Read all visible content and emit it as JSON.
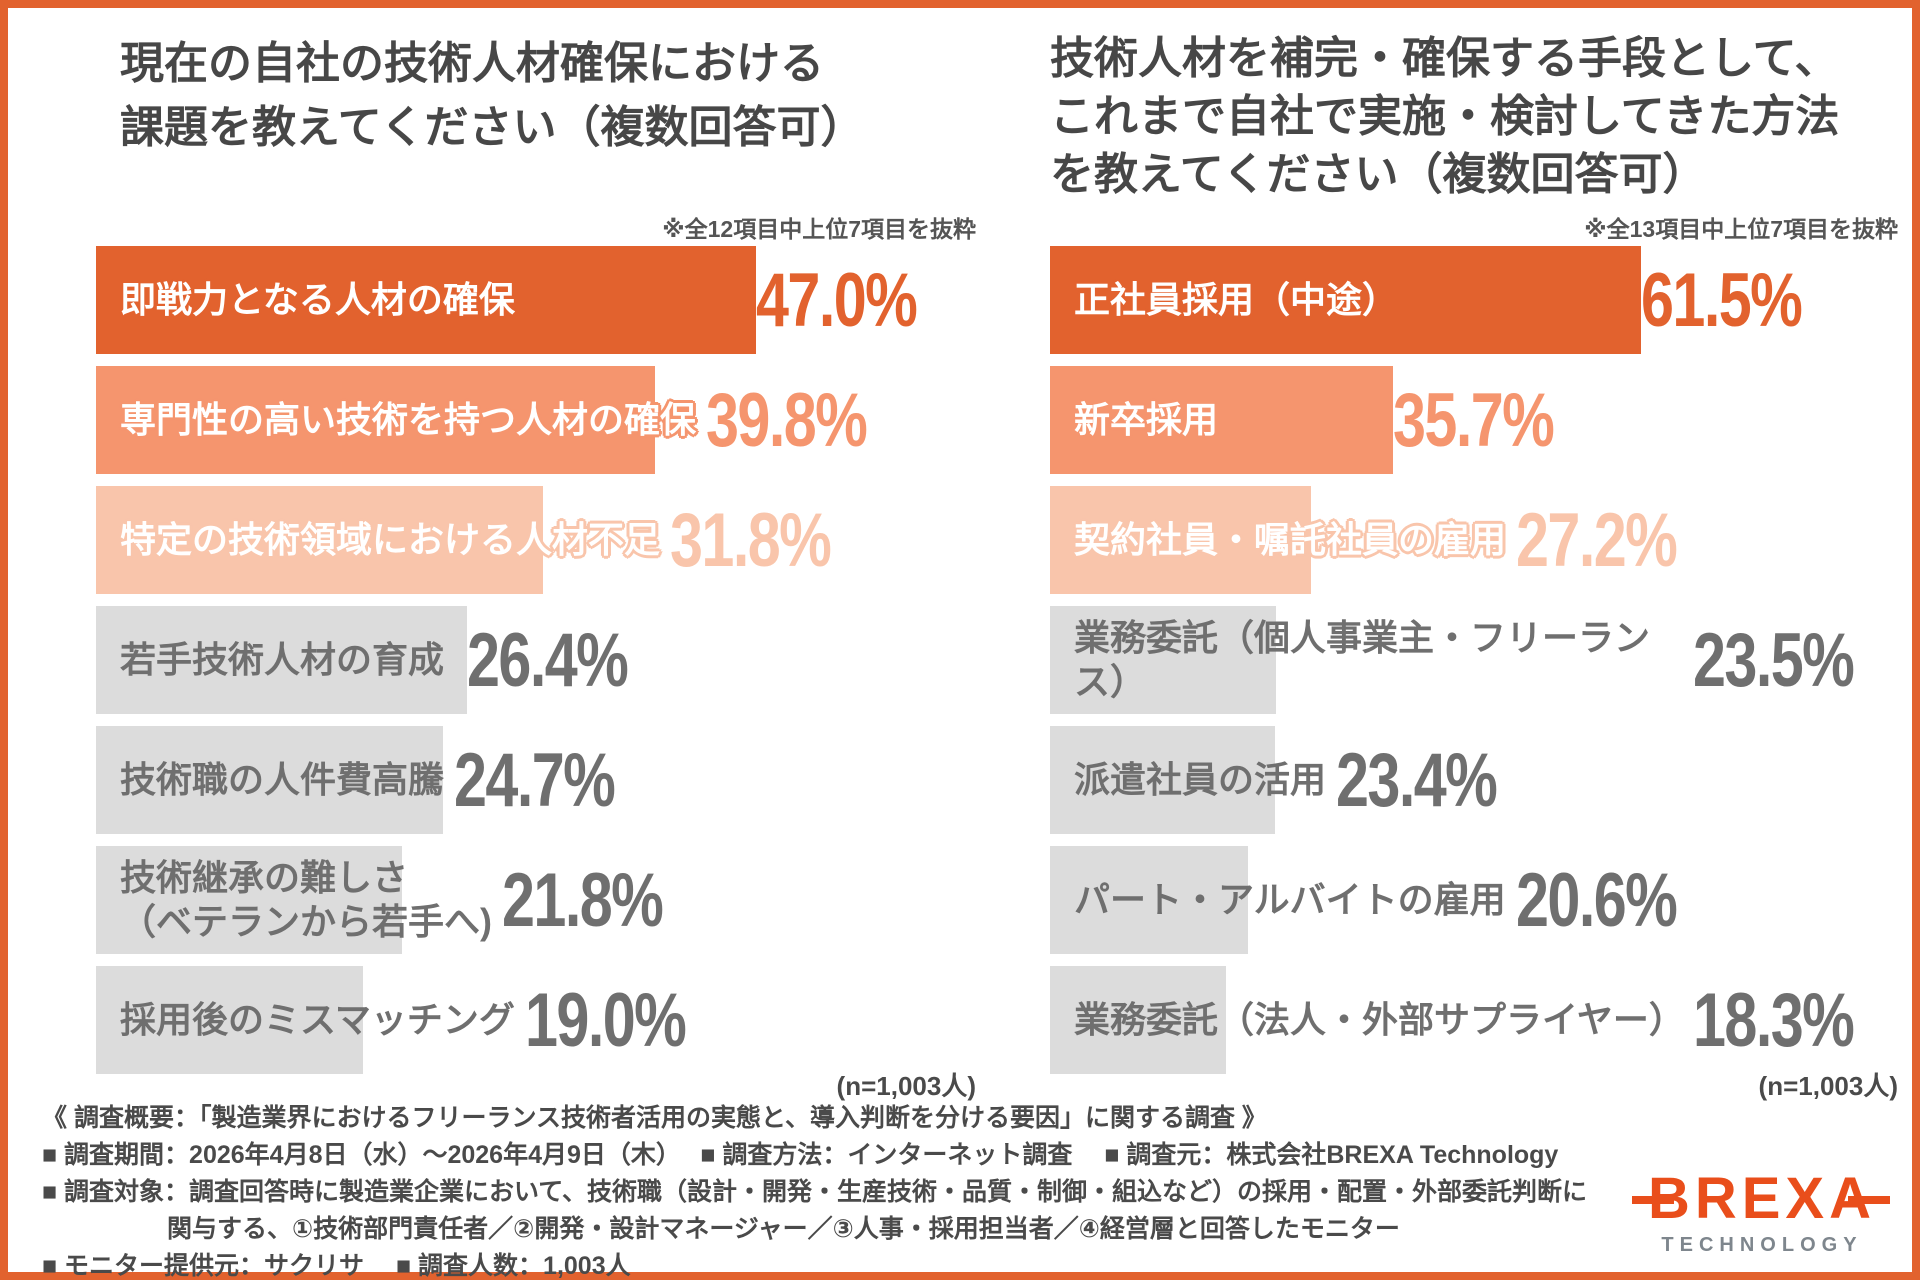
{
  "colors": {
    "accent": "#E2622E",
    "bar_strong": "#E2622E",
    "bar_medium": "#F5956E",
    "bar_light": "#F9C5AB",
    "bar_gray": "#DCDCDC",
    "text_dark": "#474747",
    "text_gray": "#6F6F6F",
    "logo_orange": "#E94E1B",
    "logo_gray": "#7E868D"
  },
  "chart_data": [
    {
      "type": "bar",
      "title": "現在の自社の技術人材確保における課題を教えてください（複数回答可）",
      "title_lines": [
        "現在の自社の技術人材確保における",
        "課題を教えてください（複数回答可）"
      ],
      "note": "※全12項目中上位7項目を抜粋",
      "sample_label": "(n=1,003人)",
      "value_unit": "%",
      "xlim": [
        0,
        50
      ],
      "legend": "none",
      "categories": [
        "即戦力となる人材の確保",
        "専門性の高い技術を持つ人材の確保",
        "特定の技術領域における人材不足",
        "若手技術人材の育成",
        "技術職の人件費高騰",
        "技術継承の難しさ\n（ベテランから若手へ)",
        "採用後のミスマッチング"
      ],
      "values": [
        47.0,
        39.8,
        31.8,
        26.4,
        24.7,
        21.8,
        19.0
      ],
      "styles": [
        "strong",
        "medium",
        "light",
        "gray",
        "gray",
        "gray",
        "gray"
      ]
    },
    {
      "type": "bar",
      "title": "技術人材を補完・確保する手段として、これまで自社で実施・検討してきた方法を教えてください（複数回答可）",
      "title_lines": [
        "技術人材を補完・確保する手段として、",
        "これまで自社で実施・検討してきた方法",
        "を教えてください（複数回答可）"
      ],
      "note": "※全13項目中上位7項目を抜粋",
      "sample_label": "(n=1,003人)",
      "value_unit": "%",
      "xlim": [
        0,
        65
      ],
      "legend": "none",
      "categories": [
        "正社員採用（中途）",
        "新卒採用",
        "契約社員・嘱託社員の雇用",
        "業務委託（個人事業主・フリーランス）",
        "派遣社員の活用",
        "パート・アルバイトの雇用",
        "業務委託（法人・外部サプライヤー）"
      ],
      "values": [
        61.5,
        35.7,
        27.2,
        23.5,
        23.4,
        20.6,
        18.3
      ],
      "styles": [
        "strong",
        "medium",
        "light",
        "gray",
        "gray",
        "gray",
        "gray"
      ]
    }
  ],
  "footer": {
    "lines": [
      "《 調査概要：「製造業界におけるフリーランス技術者活用の実態と、導入判断を分ける要因」に関する調査 》",
      "■ 調査期間：2026年4月8日（水）～2026年4月9日（木）　 ■ 調査方法：インターネット調査　 ■ 調査元：株式会社BREXA Technology",
      "■ 調査対象：調査回答時に製造業企業において、技術職（設計・開発・生産技術・品質・制御・組込など）の採用・配置・外部委託判断に",
      "　　　　　関与する、①技術部門責任者／②開発・設計マネージャー／③人事・採用担当者／④経営層と回答したモニター",
      "■ モニター提供元：サクリサ　 ■ 調査人数：1,003人"
    ]
  },
  "logo": {
    "brand": "BREXA",
    "sub": "TECHNOLOGY"
  }
}
